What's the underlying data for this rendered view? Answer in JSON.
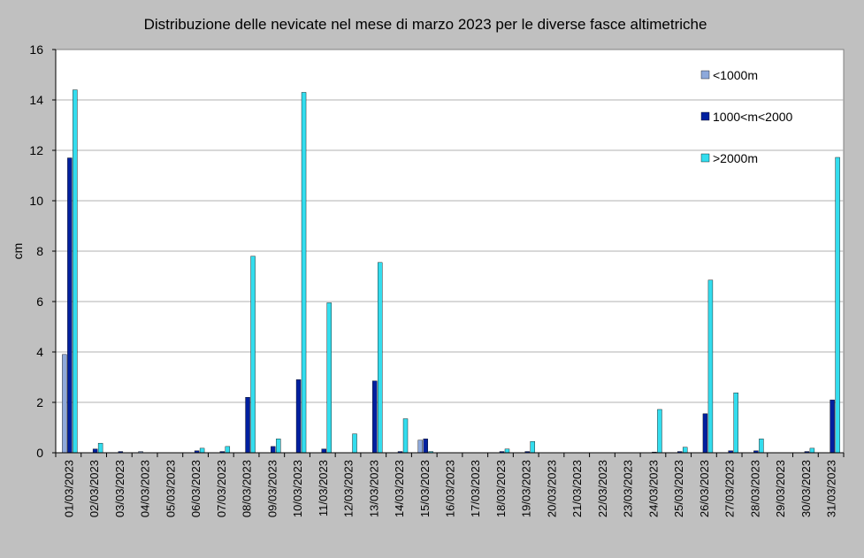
{
  "chart_data": {
    "type": "bar",
    "title": "Distribuzione delle nevicate nel mese di marzo 2023 per le diverse fasce altimetriche",
    "xlabel": "",
    "ylabel": "cm",
    "ylim": [
      0,
      16
    ],
    "yticks": [
      0,
      2,
      4,
      6,
      8,
      10,
      12,
      14,
      16
    ],
    "grid": true,
    "legend_position": "top-right",
    "categories": [
      "01/03/2023",
      "02/03/2023",
      "03/03/2023",
      "04/03/2023",
      "05/03/2023",
      "06/03/2023",
      "07/03/2023",
      "08/03/2023",
      "09/03/2023",
      "10/03/2023",
      "11/03/2023",
      "12/03/2023",
      "13/03/2023",
      "14/03/2023",
      "15/03/2023",
      "16/03/2023",
      "17/03/2023",
      "18/03/2023",
      "19/03/2023",
      "20/03/2023",
      "21/03/2023",
      "22/03/2023",
      "23/03/2023",
      "24/03/2023",
      "25/03/2023",
      "26/03/2023",
      "27/03/2023",
      "28/03/2023",
      "29/03/2023",
      "30/03/2023",
      "31/03/2023"
    ],
    "series": [
      {
        "name": "<1000m",
        "color": "#8ea9db",
        "values": [
          3.9,
          0,
          0,
          0.05,
          0,
          0,
          0,
          0,
          0,
          0,
          0,
          0,
          0,
          0,
          0.5,
          0,
          0,
          0,
          0,
          0,
          0,
          0,
          0,
          0,
          0,
          0,
          0,
          0,
          0,
          0,
          0
        ]
      },
      {
        "name": "1000<m<2000",
        "color": "#00209f",
        "values": [
          11.7,
          0.15,
          0.05,
          0,
          0,
          0.08,
          0.05,
          2.2,
          0.25,
          2.9,
          0.15,
          0,
          2.85,
          0.05,
          0.55,
          0,
          0,
          0.05,
          0.05,
          0,
          0,
          0,
          0,
          0.03,
          0.05,
          1.55,
          0.08,
          0.08,
          0,
          0.05,
          2.1
        ]
      },
      {
        "name": ">2000m",
        "color": "#33ddee",
        "values": [
          14.4,
          0.38,
          0,
          0,
          0,
          0.18,
          0.25,
          7.8,
          0.55,
          14.3,
          5.95,
          0.75,
          7.55,
          1.35,
          0.05,
          0,
          0,
          0.15,
          0.45,
          0,
          0,
          0,
          0,
          1.72,
          0.22,
          6.85,
          2.38,
          0.55,
          0,
          0.18,
          11.72
        ]
      }
    ]
  }
}
